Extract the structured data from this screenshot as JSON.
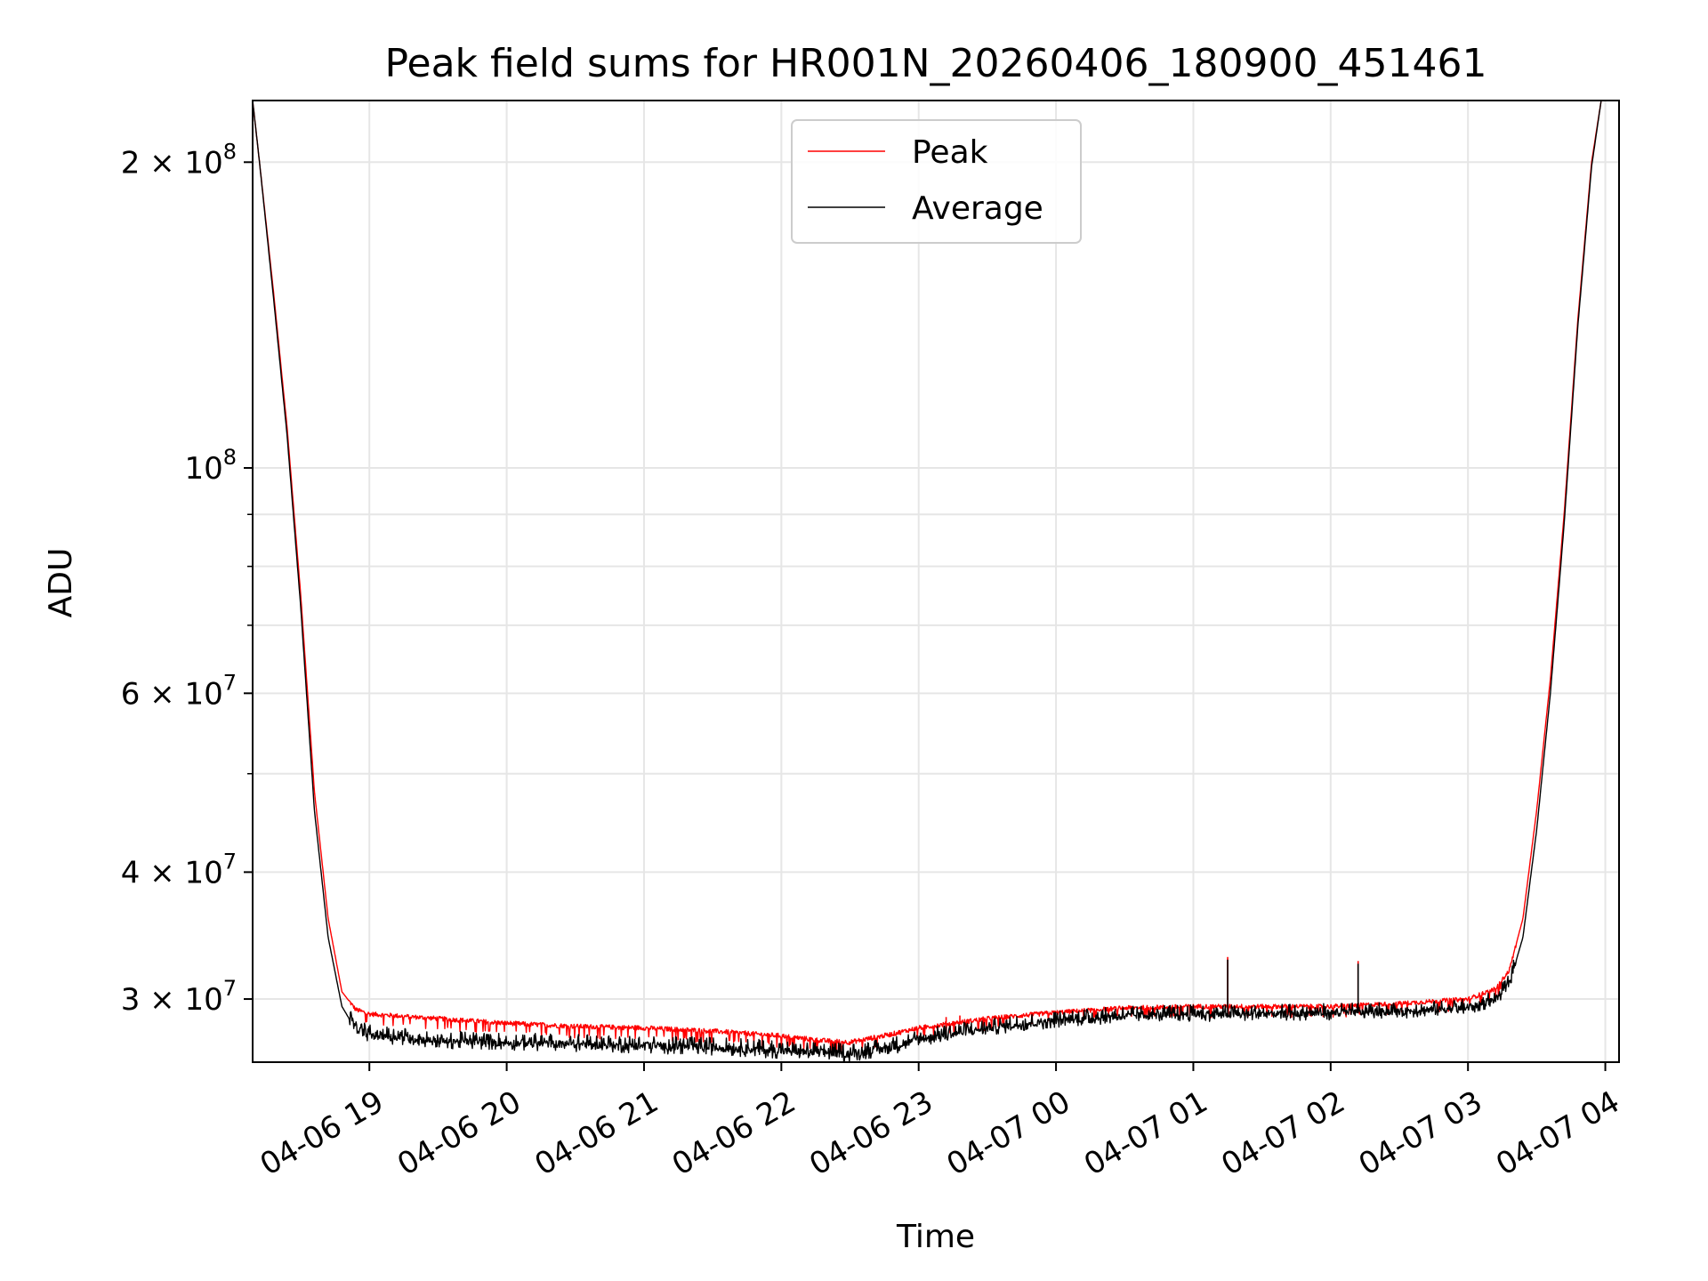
{
  "chart_data": {
    "type": "line",
    "title": "Peak field sums for HR001N_20260406_180900_451461",
    "xlabel": "Time",
    "ylabel": "ADU",
    "yscale": "log",
    "ylim": [
      26000000,
      230000000
    ],
    "xlim_hours": [
      18.15,
      28.1
    ],
    "grid": true,
    "legend_position": "upper center",
    "x_ticks": [
      {
        "hour": 19,
        "label": "04-06 19"
      },
      {
        "hour": 20,
        "label": "04-06 20"
      },
      {
        "hour": 21,
        "label": "04-06 21"
      },
      {
        "hour": 22,
        "label": "04-06 22"
      },
      {
        "hour": 23,
        "label": "04-06 23"
      },
      {
        "hour": 24,
        "label": "04-07 00"
      },
      {
        "hour": 25,
        "label": "04-07 01"
      },
      {
        "hour": 26,
        "label": "04-07 02"
      },
      {
        "hour": 27,
        "label": "04-07 03"
      },
      {
        "hour": 28,
        "label": "04-07 04"
      }
    ],
    "y_major_ticks": [
      {
        "value": 30000000,
        "mantissa": "3",
        "exp": "7"
      },
      {
        "value": 40000000,
        "mantissa": "4",
        "exp": "7"
      },
      {
        "value": 60000000,
        "mantissa": "6",
        "exp": "7"
      },
      {
        "value": 100000000,
        "mantissa": "",
        "exp": "8"
      },
      {
        "value": 200000000,
        "mantissa": "2",
        "exp": "8"
      }
    ],
    "y_minor_ticks": [
      50000000,
      70000000,
      80000000,
      90000000
    ],
    "series": [
      {
        "name": "Peak",
        "color": "#ff0000",
        "points": [
          [
            18.15,
            230000000
          ],
          [
            18.2,
            200000000
          ],
          [
            18.3,
            150000000
          ],
          [
            18.4,
            110000000
          ],
          [
            18.5,
            75000000
          ],
          [
            18.6,
            48000000
          ],
          [
            18.7,
            36000000
          ],
          [
            18.8,
            30500000
          ],
          [
            18.9,
            29300000
          ],
          [
            19.0,
            29000000
          ],
          [
            19.5,
            28700000
          ],
          [
            20.0,
            28400000
          ],
          [
            20.5,
            28200000
          ],
          [
            21.0,
            28100000
          ],
          [
            21.5,
            27900000
          ],
          [
            22.0,
            27600000
          ],
          [
            22.3,
            27300000
          ],
          [
            22.5,
            27200000
          ],
          [
            22.8,
            27700000
          ],
          [
            23.0,
            28100000
          ],
          [
            23.5,
            28700000
          ],
          [
            24.0,
            29100000
          ],
          [
            24.5,
            29400000
          ],
          [
            25.0,
            29500000
          ],
          [
            25.5,
            29500000
          ],
          [
            26.0,
            29500000
          ],
          [
            26.5,
            29700000
          ],
          [
            27.0,
            30000000
          ],
          [
            27.2,
            30700000
          ],
          [
            27.3,
            32000000
          ],
          [
            27.4,
            36000000
          ],
          [
            27.5,
            46000000
          ],
          [
            27.6,
            62000000
          ],
          [
            27.7,
            90000000
          ],
          [
            27.8,
            140000000
          ],
          [
            27.9,
            200000000
          ],
          [
            27.97,
            230000000
          ]
        ],
        "spikes": [
          {
            "hour": 25.25,
            "value": 33000000
          },
          {
            "hour": 26.2,
            "value": 32700000
          },
          {
            "hour": 23.2,
            "value": 28800000
          },
          {
            "hour": 23.3,
            "value": 28900000
          }
        ]
      },
      {
        "name": "Average",
        "color": "#000000",
        "points": [
          [
            18.15,
            230000000
          ],
          [
            18.2,
            200000000
          ],
          [
            18.3,
            148000000
          ],
          [
            18.4,
            108000000
          ],
          [
            18.5,
            73000000
          ],
          [
            18.6,
            46000000
          ],
          [
            18.7,
            34500000
          ],
          [
            18.8,
            29500000
          ],
          [
            18.9,
            28000000
          ],
          [
            19.0,
            27600000
          ],
          [
            19.5,
            27200000
          ],
          [
            20.0,
            27100000
          ],
          [
            20.5,
            27000000
          ],
          [
            21.0,
            26900000
          ],
          [
            21.5,
            26800000
          ],
          [
            22.0,
            26600000
          ],
          [
            22.3,
            26500000
          ],
          [
            22.5,
            26400000
          ],
          [
            22.8,
            26800000
          ],
          [
            23.0,
            27300000
          ],
          [
            23.5,
            28000000
          ],
          [
            24.0,
            28500000
          ],
          [
            24.5,
            28800000
          ],
          [
            25.0,
            28900000
          ],
          [
            25.5,
            28900000
          ],
          [
            26.0,
            29000000
          ],
          [
            26.5,
            29100000
          ],
          [
            27.0,
            29300000
          ],
          [
            27.2,
            29900000
          ],
          [
            27.3,
            31000000
          ],
          [
            27.4,
            34500000
          ],
          [
            27.5,
            44000000
          ],
          [
            27.6,
            60000000
          ],
          [
            27.7,
            88000000
          ],
          [
            27.8,
            138000000
          ],
          [
            27.9,
            198000000
          ],
          [
            27.97,
            230000000
          ]
        ],
        "noise_amplitude": 1100000,
        "spikes": [
          {
            "hour": 25.25,
            "value": 32800000
          },
          {
            "hour": 26.2,
            "value": 32500000
          }
        ]
      }
    ]
  }
}
